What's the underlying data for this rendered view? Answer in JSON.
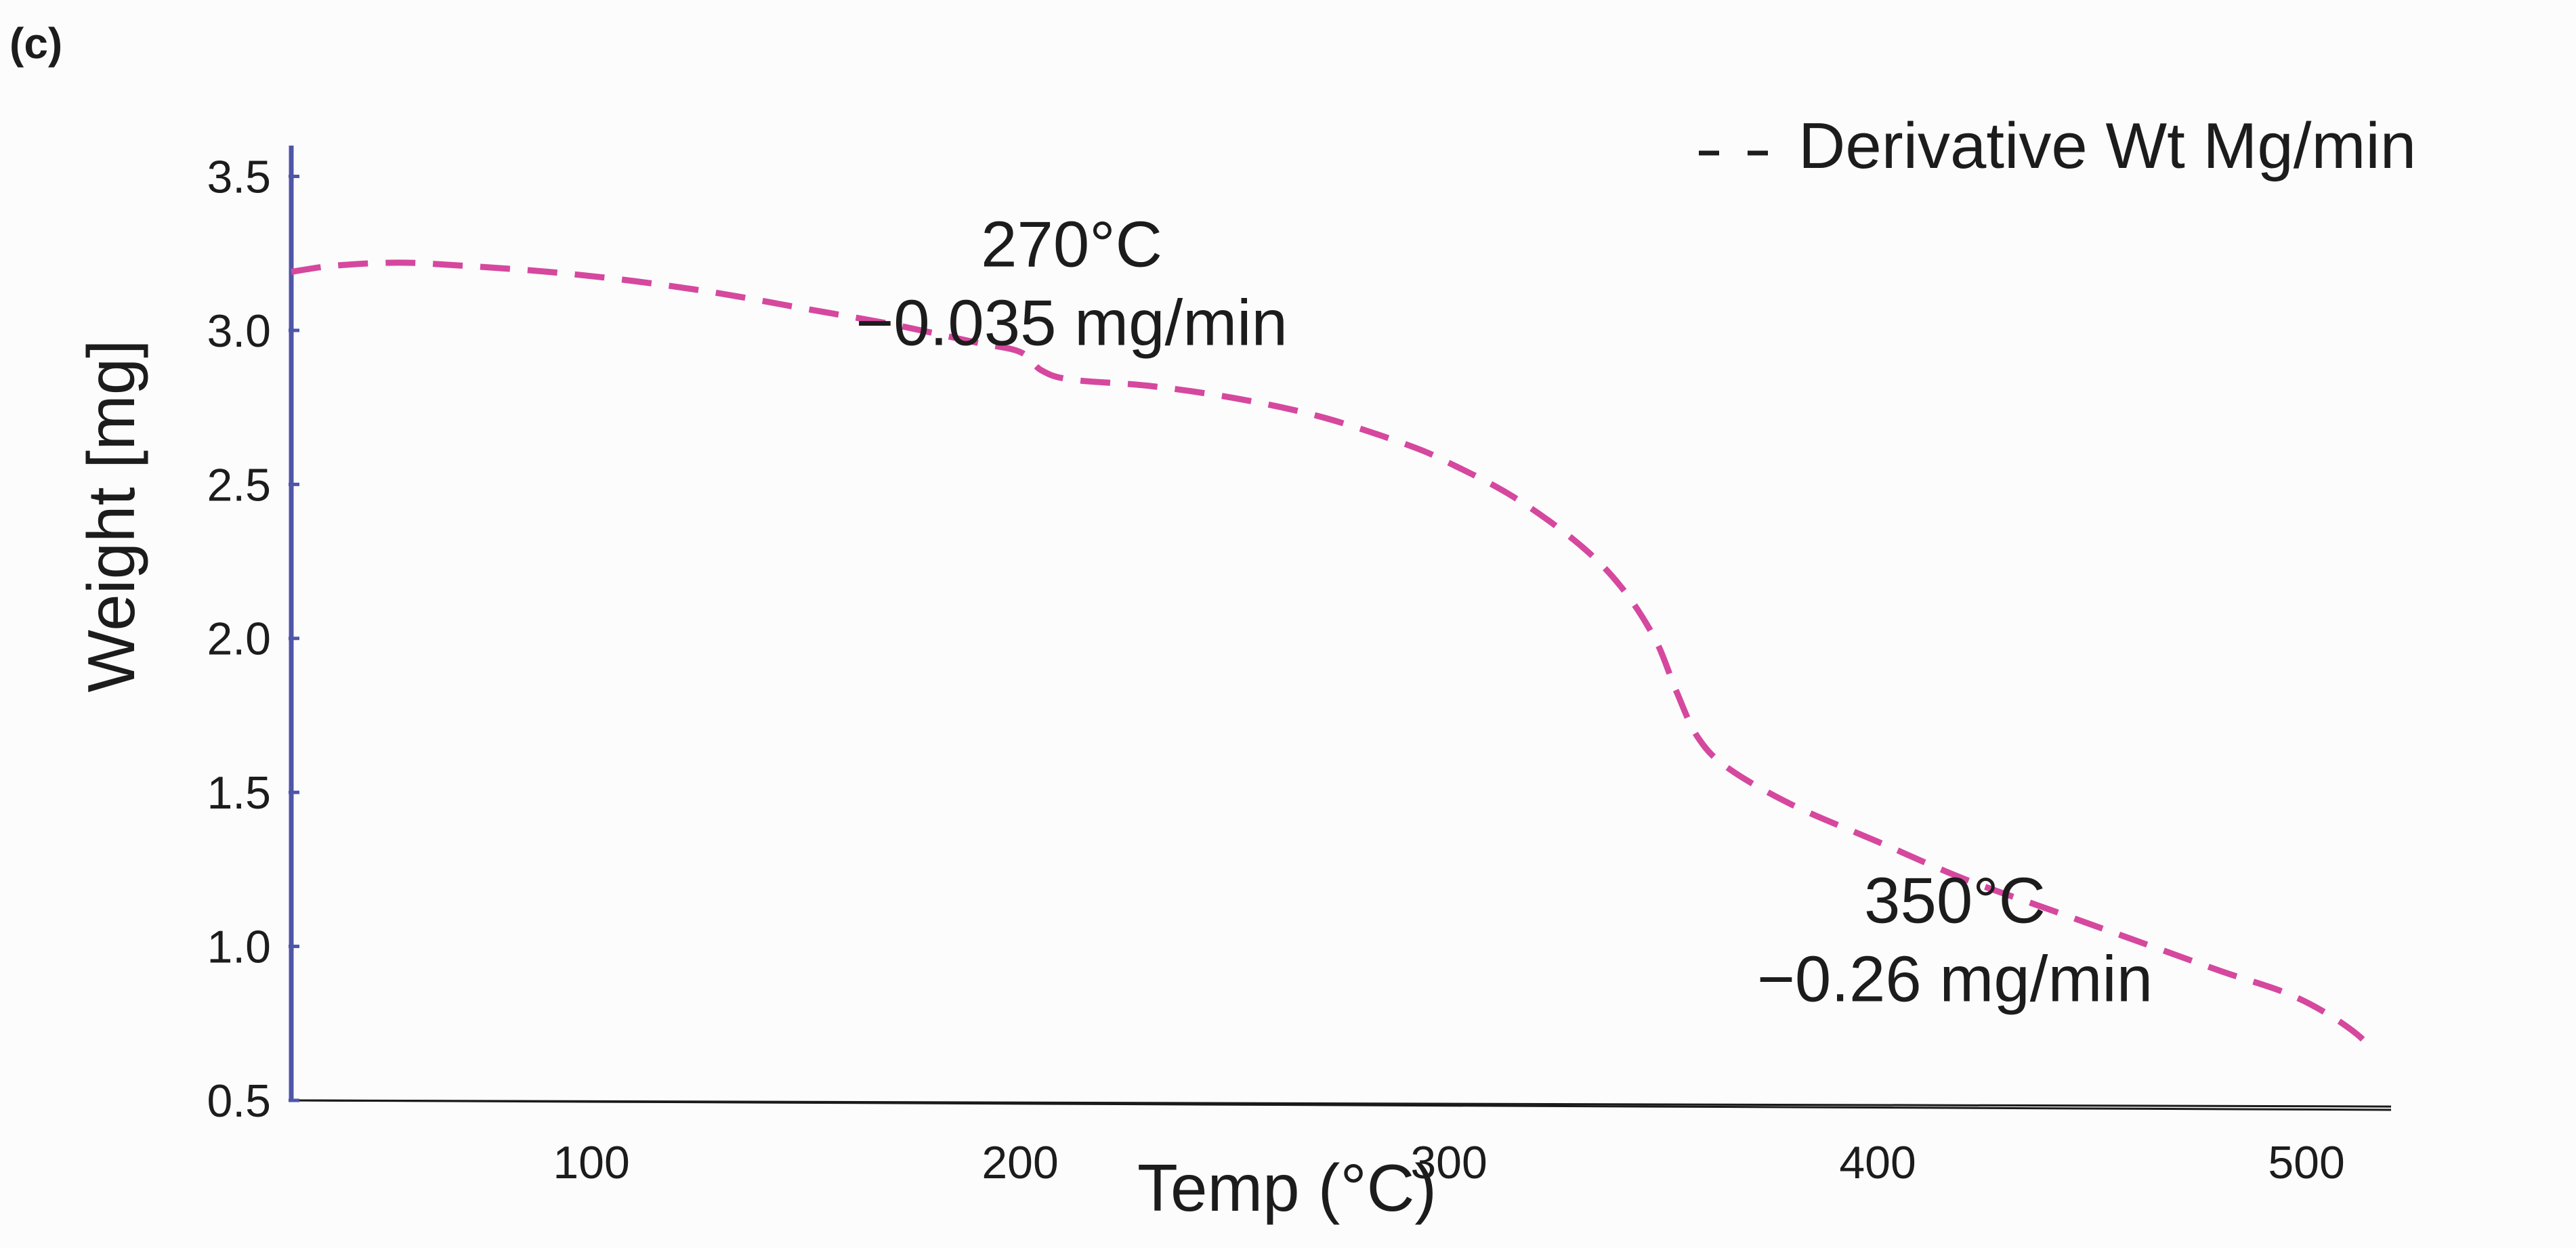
{
  "panel_label": "(c)",
  "colors": {
    "background": "#fcfcfd",
    "axis_y": "#4f55a8",
    "axis_x": "#1a1a1a",
    "series": "#d5489e",
    "text": "#1c1c1c"
  },
  "chart_data": {
    "type": "line",
    "title": "",
    "xlabel": "Temp (°C)",
    "ylabel": "Weight [mg]",
    "xlim": [
      30,
      515
    ],
    "ylim": [
      0.5,
      3.6
    ],
    "x_ticks": [
      {
        "value": 100,
        "label": "100"
      },
      {
        "value": 200,
        "label": "200"
      },
      {
        "value": 300,
        "label": "300"
      },
      {
        "value": 400,
        "label": "400"
      },
      {
        "value": 500,
        "label": "500"
      }
    ],
    "y_ticks": [
      {
        "value": 0.5,
        "label": "0.5"
      },
      {
        "value": 1.0,
        "label": "1.0"
      },
      {
        "value": 1.5,
        "label": "1.5"
      },
      {
        "value": 2.0,
        "label": "2.0"
      },
      {
        "value": 2.5,
        "label": "2.5"
      },
      {
        "value": 3.0,
        "label": "3.0"
      },
      {
        "value": 3.5,
        "label": "3.5"
      }
    ],
    "grid": false,
    "legend": {
      "position": "top-right",
      "label": "Derivative Wt Mg/min",
      "marker": "- -"
    },
    "series": [
      {
        "name": "Derivative Wt Mg/min",
        "style": "dashed",
        "points": [
          [
            30,
            3.19
          ],
          [
            40,
            3.21
          ],
          [
            55,
            3.22
          ],
          [
            70,
            3.21
          ],
          [
            90,
            3.19
          ],
          [
            110,
            3.16
          ],
          [
            130,
            3.12
          ],
          [
            150,
            3.07
          ],
          [
            170,
            3.02
          ],
          [
            190,
            2.96
          ],
          [
            200,
            2.93
          ],
          [
            205,
            2.87
          ],
          [
            212,
            2.84
          ],
          [
            230,
            2.82
          ],
          [
            250,
            2.78
          ],
          [
            270,
            2.72
          ],
          [
            290,
            2.63
          ],
          [
            300,
            2.57
          ],
          [
            315,
            2.46
          ],
          [
            330,
            2.31
          ],
          [
            340,
            2.17
          ],
          [
            348,
            2.0
          ],
          [
            353,
            1.83
          ],
          [
            358,
            1.68
          ],
          [
            365,
            1.58
          ],
          [
            380,
            1.46
          ],
          [
            400,
            1.34
          ],
          [
            420,
            1.22
          ],
          [
            440,
            1.12
          ],
          [
            460,
            1.02
          ],
          [
            480,
            0.92
          ],
          [
            495,
            0.85
          ],
          [
            505,
            0.78
          ],
          [
            513,
            0.7
          ],
          [
            515,
            0.65
          ]
        ]
      }
    ],
    "baseline": {
      "points": [
        [
          30,
          0.5
        ],
        [
          515,
          0.48
        ]
      ]
    },
    "annotations": [
      {
        "line1": "270°C",
        "line2": "−0.035 mg/min",
        "x": 212,
        "y": 3.08
      },
      {
        "line1": "350°C",
        "line2": "−0.26 mg/min",
        "x": 418,
        "y": 0.95
      }
    ]
  }
}
